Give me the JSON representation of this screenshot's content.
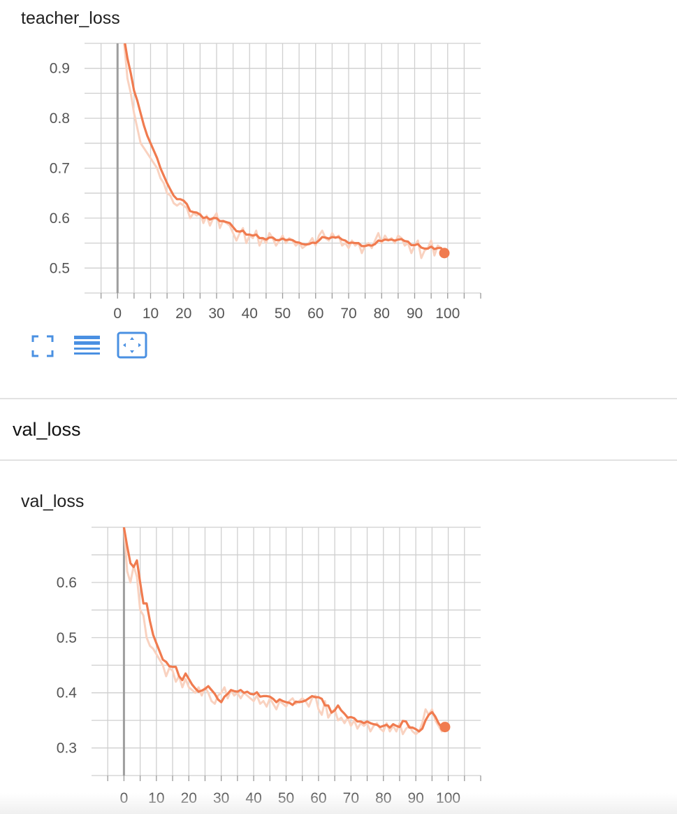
{
  "cards": [
    {
      "title": "teacher_loss"
    },
    {
      "title": "val_loss"
    }
  ],
  "section": {
    "title": "val_loss"
  },
  "toolbar": {
    "buttons": [
      {
        "name": "expand-icon"
      },
      {
        "name": "toggle-log-icon"
      },
      {
        "name": "fit-domain-icon"
      }
    ]
  },
  "colors": {
    "smoothed": "#f07b4f",
    "raw": "#f9d2c0",
    "grid": "#cfcfcf",
    "zero_line": "#9e9e9e"
  },
  "chart_data": [
    {
      "type": "line",
      "title": "teacher_loss",
      "xlim": [
        -10,
        110
      ],
      "ylim": [
        0.45,
        0.95
      ],
      "x_ticks": [
        0,
        10,
        20,
        30,
        40,
        50,
        60,
        70,
        80,
        90,
        100
      ],
      "x_tick_labels": [
        "0",
        "10",
        "20",
        "30",
        "40",
        "50",
        "60",
        "70",
        "80",
        "90",
        "100"
      ],
      "y_ticks": [
        0.5,
        0.6,
        0.7,
        0.8,
        0.9
      ],
      "y_tick_labels": [
        "0.5",
        "0.6",
        "0.7",
        "0.8",
        "0.9"
      ],
      "grid": true,
      "series": [
        {
          "kind": "raw",
          "x": [
            2,
            3,
            4,
            5,
            6,
            7,
            8,
            9,
            10,
            11,
            12,
            13,
            14,
            15,
            16,
            17,
            18,
            19,
            20,
            21,
            22,
            23,
            24,
            25,
            26,
            27,
            28,
            29,
            30,
            31,
            32,
            33,
            34,
            35,
            36,
            37,
            38,
            39,
            40,
            41,
            42,
            43,
            44,
            45,
            46,
            47,
            48,
            49,
            50,
            51,
            52,
            53,
            54,
            55,
            56,
            57,
            58,
            59,
            60,
            61,
            62,
            63,
            64,
            65,
            66,
            67,
            68,
            69,
            70,
            71,
            72,
            73,
            74,
            75,
            76,
            77,
            78,
            79,
            80,
            81,
            82,
            83,
            84,
            85,
            86,
            87,
            88,
            89,
            90,
            91,
            92,
            93,
            94,
            95,
            96,
            97,
            98,
            99
          ],
          "y": [
            0.95,
            0.88,
            0.85,
            0.81,
            0.78,
            0.75,
            0.74,
            0.73,
            0.72,
            0.71,
            0.7,
            0.68,
            0.67,
            0.65,
            0.645,
            0.63,
            0.625,
            0.63,
            0.625,
            0.62,
            0.6,
            0.61,
            0.605,
            0.61,
            0.59,
            0.605,
            0.585,
            0.6,
            0.61,
            0.58,
            0.595,
            0.59,
            0.585,
            0.57,
            0.555,
            0.57,
            0.58,
            0.55,
            0.565,
            0.56,
            0.575,
            0.545,
            0.56,
            0.55,
            0.57,
            0.56,
            0.545,
            0.555,
            0.565,
            0.55,
            0.56,
            0.555,
            0.545,
            0.55,
            0.54,
            0.545,
            0.55,
            0.56,
            0.545,
            0.565,
            0.575,
            0.56,
            0.555,
            0.57,
            0.56,
            0.565,
            0.545,
            0.55,
            0.54,
            0.555,
            0.545,
            0.55,
            0.53,
            0.545,
            0.55,
            0.54,
            0.555,
            0.57,
            0.55,
            0.565,
            0.555,
            0.56,
            0.55,
            0.565,
            0.56,
            0.545,
            0.55,
            0.53,
            0.545,
            0.555,
            0.52,
            0.535,
            0.54,
            0.555,
            0.525,
            0.545,
            0.54,
            0.53
          ]
        },
        {
          "kind": "smoothed",
          "x": [
            2,
            3,
            4,
            5,
            6,
            7,
            8,
            9,
            10,
            11,
            12,
            13,
            14,
            15,
            16,
            17,
            18,
            19,
            20,
            21,
            22,
            23,
            24,
            25,
            26,
            27,
            28,
            29,
            30,
            31,
            32,
            33,
            34,
            35,
            36,
            37,
            38,
            39,
            40,
            41,
            42,
            43,
            44,
            45,
            46,
            47,
            48,
            49,
            50,
            51,
            52,
            53,
            54,
            55,
            56,
            57,
            58,
            59,
            60,
            61,
            62,
            63,
            64,
            65,
            66,
            67,
            68,
            69,
            70,
            71,
            72,
            73,
            74,
            75,
            76,
            77,
            78,
            79,
            80,
            81,
            82,
            83,
            84,
            85,
            86,
            87,
            88,
            89,
            90,
            91,
            92,
            93,
            94,
            95,
            96,
            97,
            98,
            99
          ],
          "y": [
            0.96,
            0.92,
            0.89,
            0.855,
            0.835,
            0.81,
            0.785,
            0.765,
            0.75,
            0.735,
            0.72,
            0.7,
            0.685,
            0.67,
            0.657,
            0.645,
            0.638,
            0.638,
            0.635,
            0.628,
            0.614,
            0.612,
            0.611,
            0.607,
            0.6,
            0.602,
            0.597,
            0.6,
            0.6,
            0.594,
            0.594,
            0.592,
            0.59,
            0.582,
            0.574,
            0.573,
            0.575,
            0.567,
            0.567,
            0.565,
            0.567,
            0.56,
            0.56,
            0.557,
            0.561,
            0.561,
            0.556,
            0.556,
            0.559,
            0.556,
            0.557,
            0.556,
            0.552,
            0.551,
            0.548,
            0.547,
            0.548,
            0.551,
            0.55,
            0.555,
            0.562,
            0.561,
            0.559,
            0.562,
            0.561,
            0.562,
            0.557,
            0.555,
            0.55,
            0.551,
            0.55,
            0.55,
            0.544,
            0.544,
            0.546,
            0.545,
            0.548,
            0.555,
            0.554,
            0.557,
            0.556,
            0.557,
            0.555,
            0.557,
            0.558,
            0.554,
            0.553,
            0.546,
            0.546,
            0.548,
            0.541,
            0.539,
            0.539,
            0.543,
            0.538,
            0.54,
            0.54,
            0.53
          ]
        }
      ]
    },
    {
      "type": "line",
      "title": "val_loss",
      "xlim": [
        -10,
        110
      ],
      "ylim": [
        0.25,
        0.7
      ],
      "x_ticks": [
        0,
        10,
        20,
        30,
        40,
        50,
        60,
        70,
        80,
        90,
        100
      ],
      "x_tick_labels": [
        "0",
        "10",
        "20",
        "30",
        "40",
        "50",
        "60",
        "70",
        "80",
        "90",
        "100"
      ],
      "y_ticks": [
        0.3,
        0.4,
        0.5,
        0.6
      ],
      "y_tick_labels": [
        "0.3",
        "0.4",
        "0.5",
        "0.6"
      ],
      "grid": true,
      "series": [
        {
          "kind": "raw",
          "x": [
            0,
            1,
            2,
            3,
            4,
            5,
            6,
            7,
            8,
            9,
            10,
            11,
            12,
            13,
            14,
            15,
            16,
            17,
            18,
            19,
            20,
            21,
            22,
            23,
            24,
            25,
            26,
            27,
            28,
            29,
            30,
            31,
            32,
            33,
            34,
            35,
            36,
            37,
            38,
            39,
            40,
            41,
            42,
            43,
            44,
            45,
            46,
            47,
            48,
            49,
            50,
            51,
            52,
            53,
            54,
            55,
            56,
            57,
            58,
            59,
            60,
            61,
            62,
            63,
            64,
            65,
            66,
            67,
            68,
            69,
            70,
            71,
            72,
            73,
            74,
            75,
            76,
            77,
            78,
            79,
            80,
            81,
            82,
            83,
            84,
            85,
            86,
            87,
            88,
            89,
            90,
            91,
            92,
            93,
            94,
            95,
            96,
            97,
            98,
            99
          ],
          "y": [
            0.7,
            0.62,
            0.6,
            0.63,
            0.61,
            0.55,
            0.54,
            0.5,
            0.485,
            0.48,
            0.47,
            0.46,
            0.45,
            0.43,
            0.445,
            0.44,
            0.42,
            0.43,
            0.41,
            0.425,
            0.41,
            0.405,
            0.4,
            0.41,
            0.395,
            0.41,
            0.4,
            0.385,
            0.38,
            0.395,
            0.4,
            0.41,
            0.39,
            0.405,
            0.395,
            0.4,
            0.39,
            0.4,
            0.395,
            0.39,
            0.385,
            0.395,
            0.38,
            0.385,
            0.375,
            0.39,
            0.38,
            0.37,
            0.385,
            0.38,
            0.375,
            0.385,
            0.39,
            0.38,
            0.385,
            0.39,
            0.385,
            0.375,
            0.39,
            0.395,
            0.37,
            0.36,
            0.385,
            0.355,
            0.365,
            0.37,
            0.35,
            0.355,
            0.345,
            0.355,
            0.34,
            0.35,
            0.335,
            0.345,
            0.34,
            0.345,
            0.33,
            0.34,
            0.345,
            0.335,
            0.33,
            0.345,
            0.33,
            0.34,
            0.33,
            0.345,
            0.325,
            0.335,
            0.34,
            0.33,
            0.325,
            0.33,
            0.345,
            0.37,
            0.36,
            0.37,
            0.35,
            0.34,
            0.33,
            0.34
          ]
        },
        {
          "kind": "smoothed",
          "x": [
            0,
            1,
            2,
            3,
            4,
            5,
            6,
            7,
            8,
            9,
            10,
            11,
            12,
            13,
            14,
            15,
            16,
            17,
            18,
            19,
            20,
            21,
            22,
            23,
            24,
            25,
            26,
            27,
            28,
            29,
            30,
            31,
            32,
            33,
            34,
            35,
            36,
            37,
            38,
            39,
            40,
            41,
            42,
            43,
            44,
            45,
            46,
            47,
            48,
            49,
            50,
            51,
            52,
            53,
            54,
            55,
            56,
            57,
            58,
            59,
            60,
            61,
            62,
            63,
            64,
            65,
            66,
            67,
            68,
            69,
            70,
            71,
            72,
            73,
            74,
            75,
            76,
            77,
            78,
            79,
            80,
            81,
            82,
            83,
            84,
            85,
            86,
            87,
            88,
            89,
            90,
            91,
            92,
            93,
            94,
            95,
            96,
            97,
            98,
            99
          ],
          "y": [
            0.7,
            0.665,
            0.635,
            0.628,
            0.64,
            0.6,
            0.562,
            0.562,
            0.53,
            0.505,
            0.49,
            0.475,
            0.46,
            0.456,
            0.448,
            0.447,
            0.447,
            0.43,
            0.423,
            0.435,
            0.425,
            0.415,
            0.408,
            0.402,
            0.404,
            0.407,
            0.412,
            0.405,
            0.398,
            0.388,
            0.383,
            0.393,
            0.398,
            0.405,
            0.403,
            0.402,
            0.405,
            0.4,
            0.402,
            0.398,
            0.397,
            0.401,
            0.393,
            0.394,
            0.394,
            0.393,
            0.389,
            0.383,
            0.388,
            0.385,
            0.383,
            0.382,
            0.378,
            0.384,
            0.383,
            0.384,
            0.386,
            0.39,
            0.394,
            0.392,
            0.392,
            0.389,
            0.377,
            0.377,
            0.364,
            0.368,
            0.377,
            0.368,
            0.362,
            0.355,
            0.356,
            0.354,
            0.348,
            0.348,
            0.345,
            0.348,
            0.345,
            0.343,
            0.342,
            0.338,
            0.34,
            0.342,
            0.337,
            0.343,
            0.34,
            0.338,
            0.349,
            0.348,
            0.337,
            0.337,
            0.334,
            0.33,
            0.335,
            0.35,
            0.36,
            0.365,
            0.357,
            0.345,
            0.337,
            0.338
          ]
        }
      ]
    }
  ]
}
